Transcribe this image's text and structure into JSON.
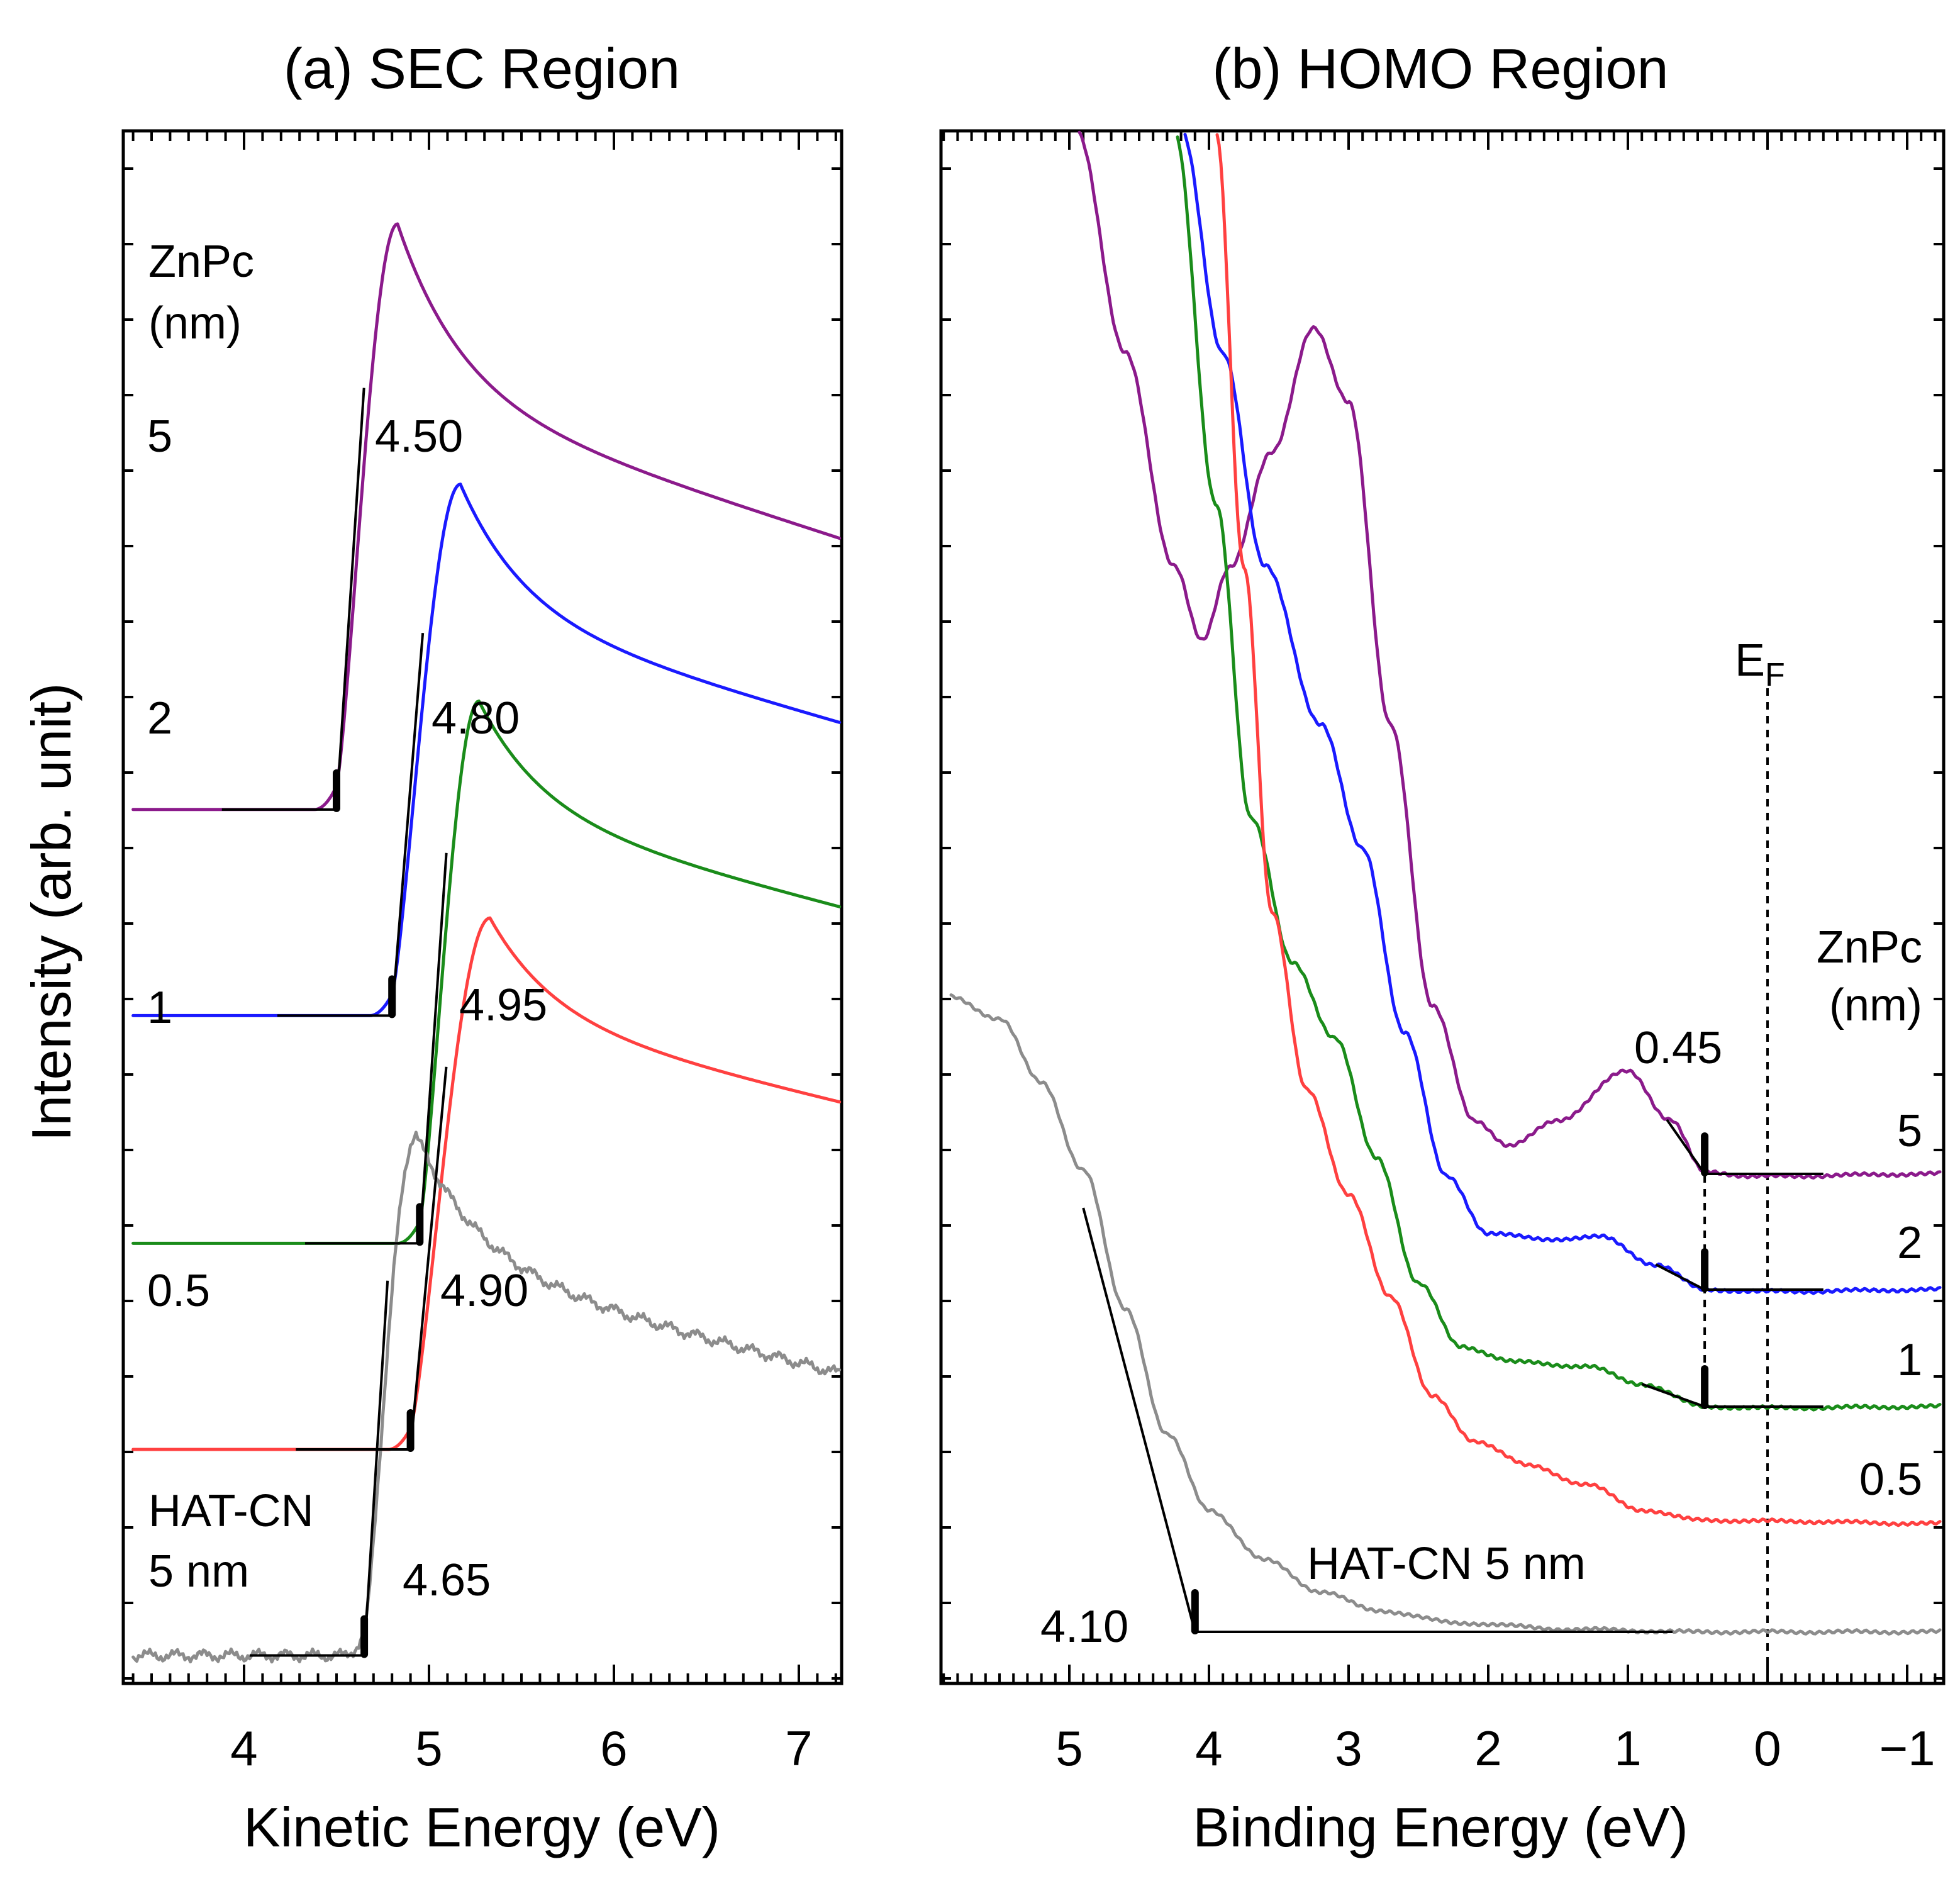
{
  "figure": {
    "ylabel": "Intensity (arb. unit)"
  },
  "chart_data": [
    {
      "id": "sec",
      "type": "line",
      "title": "(a) SEC Region",
      "xlabel": "Kinetic Energy (eV)",
      "ylabel": "Intensity (arb. unit)",
      "xlim": [
        3.35,
        7.25
      ],
      "x_reversed": false,
      "xticks": [
        4,
        5,
        6,
        7
      ],
      "xtick_labels": [
        "4",
        "5",
        "6",
        "7"
      ],
      "legend_title": [
        "ZnPc",
        "(nm)"
      ],
      "series": [
        {
          "name": "5",
          "color": "#8b1a8b",
          "onset": 4.5,
          "onset_label": "4.50",
          "baseline": 7.8,
          "peak_x": 4.83,
          "peak_y": 13.2,
          "end_y": 10.3
        },
        {
          "name": "2",
          "color": "#1a1aff",
          "onset": 4.8,
          "onset_label": "4.80",
          "baseline": 5.9,
          "peak_x": 5.17,
          "peak_y": 10.8,
          "end_y": 8.6
        },
        {
          "name": "1",
          "color": "#1a8c1a",
          "onset": 4.95,
          "onset_label": "4.95",
          "baseline": 3.8,
          "peak_x": 5.27,
          "peak_y": 8.8,
          "end_y": 6.9
        },
        {
          "name": "0.5",
          "color": "#ff4040",
          "onset": 4.9,
          "onset_label": "4.90",
          "baseline": 1.9,
          "peak_x": 5.33,
          "peak_y": 6.8,
          "end_y": 5.1
        },
        {
          "name": "HAT-CN 5 nm",
          "label_lines": [
            "HAT-CN",
            "5 nm"
          ],
          "color": "#8c8c8c",
          "onset": 4.65,
          "onset_label": "4.65",
          "baseline": 0.0,
          "peak_x": 4.93,
          "peak_y": 4.8,
          "end_y": 2.6
        }
      ]
    },
    {
      "id": "homo",
      "type": "line",
      "title": "(b) HOMO Region",
      "xlabel": "Binding Energy (eV)",
      "xlim": [
        5.85,
        -1.3
      ],
      "x_reversed": true,
      "xticks": [
        5,
        4,
        3,
        2,
        1,
        0,
        -1
      ],
      "xtick_labels": [
        "5",
        "4",
        "3",
        "2",
        "1",
        "0",
        "−1"
      ],
      "fermi_label": "E",
      "fermi_sub": "F",
      "legend_title": [
        "ZnPc",
        "(nm)"
      ],
      "homo_onset": 0.45,
      "homo_onset_label": "0.45",
      "series": [
        {
          "name": "5",
          "color": "#8b1a8b"
        },
        {
          "name": "2",
          "color": "#1a1aff"
        },
        {
          "name": "1",
          "color": "#1a8c1a"
        },
        {
          "name": "0.5",
          "color": "#ff4040"
        },
        {
          "name": "HAT-CN 5 nm",
          "color": "#8c8c8c",
          "onset": 4.1,
          "onset_label": "4.10"
        }
      ]
    }
  ]
}
